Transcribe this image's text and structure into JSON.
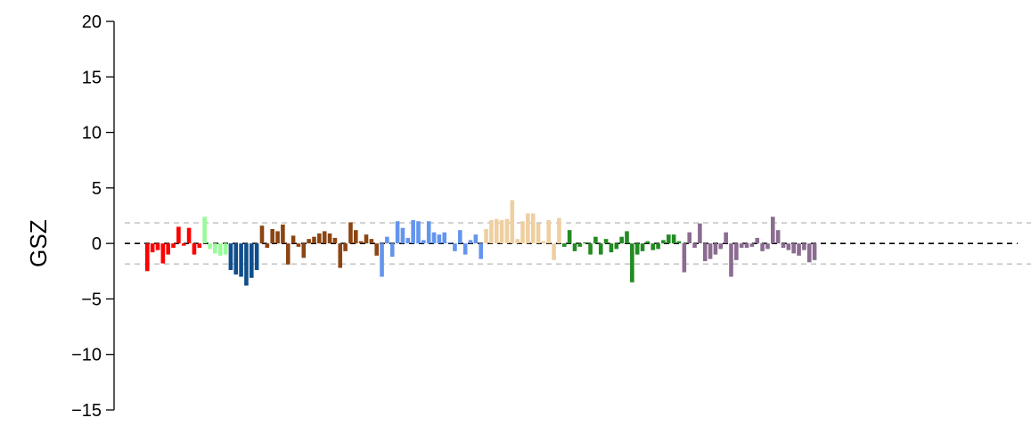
{
  "chart_data": {
    "type": "bar",
    "title": "",
    "xlabel": "",
    "ylabel": "GSZ",
    "ylim": [
      -15,
      20
    ],
    "yticks": [
      -15,
      -10,
      -5,
      0,
      5,
      10,
      15,
      20
    ],
    "ytick_labels": [
      "−15",
      "−10",
      "−5",
      "0",
      "5",
      "10",
      "15",
      "20"
    ],
    "reference_lines": [
      {
        "y": 0,
        "style": "dashed",
        "color": "#000000"
      },
      {
        "y": 1.85,
        "style": "dashed",
        "color": "#bebebe"
      },
      {
        "y": -1.85,
        "style": "dashed",
        "color": "#bebebe"
      }
    ],
    "grid": false,
    "groups": [
      {
        "color": "#ff0000",
        "values": [
          -2.5,
          -0.8,
          -0.6,
          -1.8,
          -1.0,
          -0.4,
          1.5,
          -0.2,
          1.4,
          -1.0,
          -0.4
        ]
      },
      {
        "color": "#98fb98",
        "values": [
          2.4,
          -0.5,
          -0.9,
          -1.1,
          -1.0
        ]
      },
      {
        "color": "#104e8b",
        "values": [
          -2.4,
          -2.8,
          -3.0,
          -3.8,
          -3.1,
          -2.4
        ]
      },
      {
        "color": "#8b4513",
        "values": [
          1.6,
          -0.4,
          1.3,
          1.1,
          1.7,
          -1.9,
          0.7,
          -0.3,
          -1.3,
          0.4,
          0.6,
          0.9,
          1.1,
          0.9,
          0.5,
          -2.2,
          -0.7,
          1.9,
          1.2,
          0.2,
          0.8,
          0.4,
          -1.1
        ]
      },
      {
        "color": "#6495ed",
        "values": [
          -3.0,
          0.6,
          -1.2,
          2.0,
          1.4,
          0.5,
          2.1,
          2.0,
          0.3,
          2.0,
          1.0,
          0.8,
          1.0,
          0.1,
          -0.7,
          1.2,
          -1.0,
          0.3,
          0.8,
          -1.4
        ]
      },
      {
        "color": "#eecfa1",
        "values": [
          1.3,
          2.1,
          2.2,
          2.1,
          2.2,
          3.9,
          0.4,
          2.0,
          2.7,
          2.7,
          1.8,
          0.2,
          2.1,
          -1.5,
          2.3
        ]
      },
      {
        "color": "#228b22",
        "values": [
          -0.3,
          1.2,
          -0.7,
          -0.3,
          0.1,
          -1.0,
          0.6,
          -1.0,
          0.4,
          -0.8,
          -0.5,
          0.6,
          1.1,
          -3.5,
          -1.0,
          -0.7,
          0.2,
          -0.6,
          -0.5,
          0.3,
          0.8,
          0.8,
          0.2
        ]
      },
      {
        "color": "#8b6c91",
        "values": [
          -2.6,
          1.0,
          -0.4,
          1.8,
          -1.6,
          -1.4,
          -1.0,
          -0.5,
          1.0,
          -3.0,
          -1.5,
          -0.4,
          -0.4,
          -0.3,
          0.5,
          -0.7,
          -0.5,
          2.4,
          1.2,
          -0.4,
          -0.6,
          -0.9,
          -1.1,
          -0.6,
          -1.7,
          -1.5
        ]
      }
    ]
  }
}
